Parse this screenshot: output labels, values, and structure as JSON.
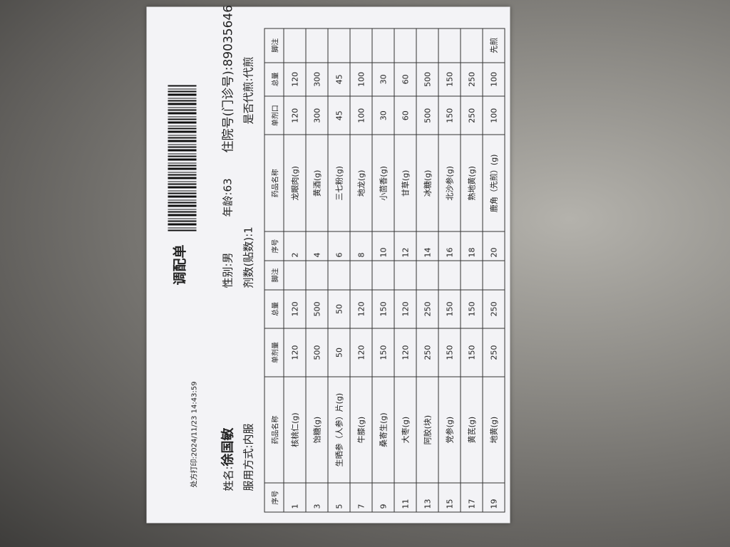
{
  "header": {
    "title": "调配单",
    "print_time": "处方打印:2024/11/23 14:43:59"
  },
  "info": {
    "name_label": "姓名:",
    "name": "徐国敏",
    "gender": "性别:男",
    "age": "年龄:63",
    "id": "住院号(门诊号):89035646",
    "usage": "服用方式:内服",
    "doses": "剂数(贴数):1",
    "decoct": "是否代煎:代煎"
  },
  "table": {
    "header": [
      "序号",
      "药品名称",
      "单剂量",
      "总量",
      "脚注",
      "序号",
      "药品名称",
      "单剂口",
      "总量",
      "脚注"
    ],
    "rows": [
      {
        "left": {
          "no": "1",
          "name": "核桃仁(g)",
          "dose": "120",
          "total": "120"
        },
        "right": {
          "no": "2",
          "name": "龙眼肉(g)",
          "dose": "120",
          "total": "120"
        }
      },
      {
        "left": {
          "no": "3",
          "name": "饴糖(g)",
          "dose": "500",
          "total": "500"
        },
        "right": {
          "no": "4",
          "name": "黄酒(g)",
          "dose": "300",
          "total": "300"
        }
      },
      {
        "left": {
          "no": "5",
          "name": "生晒参（人参）片(g)",
          "dose": "50",
          "total": "50"
        },
        "right": {
          "no": "6",
          "name": "三七粉(g)",
          "dose": "45",
          "total": "45"
        }
      },
      {
        "left": {
          "no": "7",
          "name": "牛膝(g)",
          "dose": "120",
          "total": "120"
        },
        "right": {
          "no": "8",
          "name": "地龙(g)",
          "dose": "100",
          "total": "100"
        }
      },
      {
        "left": {
          "no": "9",
          "name": "桑寄生(g)",
          "dose": "150",
          "total": "150"
        },
        "right": {
          "no": "10",
          "name": "小茴香(g)",
          "dose": "30",
          "total": "30"
        }
      },
      {
        "left": {
          "no": "11",
          "name": "大枣(g)",
          "dose": "120",
          "total": "120"
        },
        "right": {
          "no": "12",
          "name": "甘草(g)",
          "dose": "60",
          "total": "60"
        }
      },
      {
        "left": {
          "no": "13",
          "name": "阿胶(块)",
          "dose": "250",
          "total": "250"
        },
        "right": {
          "no": "14",
          "name": "冰糖(g)",
          "dose": "500",
          "total": "500"
        }
      },
      {
        "left": {
          "no": "15",
          "name": "党参(g)",
          "dose": "150",
          "total": "150"
        },
        "right": {
          "no": "16",
          "name": "北沙参(g)",
          "dose": "150",
          "total": "150"
        }
      },
      {
        "left": {
          "no": "17",
          "name": "黄芪(g)",
          "dose": "150",
          "total": "150"
        },
        "right": {
          "no": "18",
          "name": "熟地黄(g)",
          "dose": "250",
          "total": "250"
        }
      },
      {
        "left": {
          "no": "19",
          "name": "地黄(g)",
          "dose": "250",
          "total": "250"
        },
        "right": {
          "no": "20",
          "name": "鹿角（先煎）(g)",
          "dose": "100",
          "total": "100",
          "note": "先煎"
        }
      }
    ]
  }
}
